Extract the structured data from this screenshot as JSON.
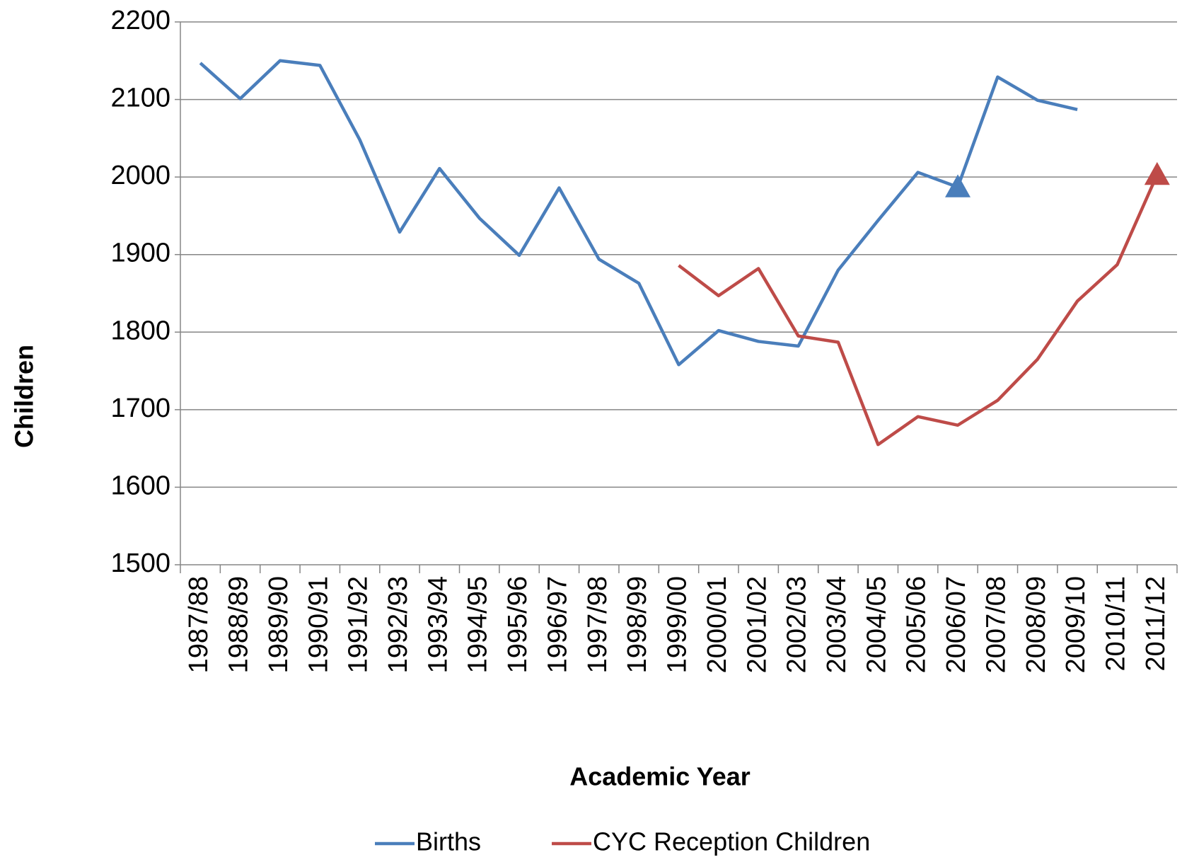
{
  "chart_data": {
    "type": "line",
    "x_label": "Academic Year",
    "y_label": "Children",
    "categories": [
      "1987/88",
      "1988/89",
      "1989/90",
      "1990/91",
      "1991/92",
      "1992/93",
      "1993/94",
      "1994/95",
      "1995/96",
      "1996/97",
      "1997/98",
      "1998/99",
      "1999/00",
      "2000/01",
      "2001/02",
      "2002/03",
      "2003/04",
      "2004/05",
      "2005/06",
      "2006/07",
      "2007/08",
      "2008/09",
      "2009/10",
      "2010/11",
      "2011/12"
    ],
    "series": [
      {
        "name": "Births",
        "color": "#4a7ebb",
        "marker": "triangle",
        "marker_at": [
          19
        ],
        "values": [
          2147,
          2101,
          2150,
          2144,
          2048,
          1929,
          2011,
          1947,
          1899,
          1986,
          1894,
          1863,
          1758,
          1802,
          1788,
          1782,
          1880,
          1944,
          2006,
          1987,
          2129,
          2099,
          2087,
          null,
          null
        ]
      },
      {
        "name": "CYC Reception Children",
        "color": "#be4b48",
        "marker": "triangle",
        "marker_at": [
          24
        ],
        "values": [
          null,
          null,
          null,
          null,
          null,
          null,
          null,
          null,
          null,
          null,
          null,
          null,
          1886,
          1847,
          1882,
          1795,
          1787,
          1655,
          1691,
          1680,
          1712,
          1765,
          1840,
          1887,
          2003
        ]
      }
    ],
    "ylim": [
      1500,
      2200
    ],
    "yticks": [
      1500,
      1600,
      1700,
      1800,
      1900,
      2000,
      2100,
      2200
    ],
    "grid": true,
    "legend": "bottom"
  }
}
